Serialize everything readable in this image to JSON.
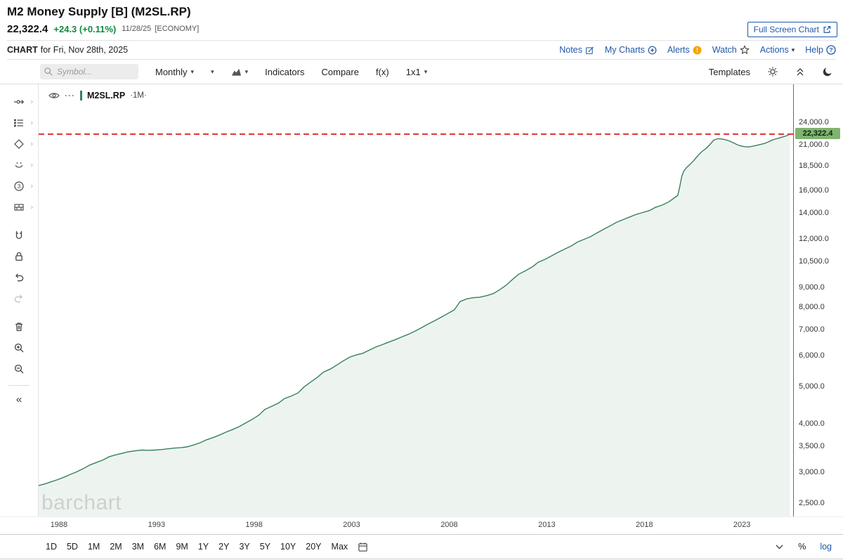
{
  "colors": {
    "link_blue": "#2158a8",
    "change_green": "#0f8a3d",
    "label_green_bg": "#80b36f",
    "alert_orange": "#f7a400",
    "log_blue": "#2158a8"
  },
  "icons": {
    "caret-down": "▾",
    "submenu-arrow": "›",
    "collapse-left": "«"
  },
  "header": {
    "title": "M2 Money Supply [B] (M2SL.RP)",
    "last_price": "22,322.4",
    "change": "+24.3 (+0.11%)",
    "quote_date": "11/28/25",
    "category": "[ECONOMY]",
    "fullscreen_button": "Full Screen Chart",
    "chart_for_bold": "CHART",
    "chart_for_text": "for Fri, Nov 28th, 2025",
    "links": [
      {
        "label": "Notes",
        "icon": "notes-icon"
      },
      {
        "label": "My Charts",
        "icon": "circle-plus-icon"
      },
      {
        "label": "Alerts",
        "icon": "alert-badge-icon"
      },
      {
        "label": "Watch",
        "icon": "star-icon"
      },
      {
        "label": "Actions",
        "icon": "caret-down-icon"
      },
      {
        "label": "Help",
        "icon": "help-icon"
      }
    ]
  },
  "toolbar": {
    "symbol_placeholder": "Symbol...",
    "frequency_label": "Monthly",
    "indicators_label": "Indicators",
    "compare_label": "Compare",
    "fx_label": "f(x)",
    "grid_label": "1x1",
    "templates_label": "Templates"
  },
  "legend": {
    "symbol": "M2SL.RP",
    "frequency": "·1M·",
    "dots": "···"
  },
  "watermark": "barchart",
  "drawing_tools": [
    "trendline-tool",
    "annotation-tool",
    "shapes-tool",
    "emoji-tool",
    "fibonacci-tool",
    "pattern-tool",
    "magnet-tool",
    "lock-tool",
    "undo",
    "redo",
    "delete-tool",
    "zoom-in",
    "zoom-out",
    "collapse-panel"
  ],
  "periods": [
    "1D",
    "5D",
    "1M",
    "2M",
    "3M",
    "6M",
    "9M",
    "1Y",
    "2Y",
    "3Y",
    "5Y",
    "10Y",
    "20Y",
    "Max"
  ],
  "bottom_right": {
    "percent_label": "%",
    "log_label": "log"
  },
  "chart_data": {
    "type": "area",
    "title": "M2 Money Supply [B] (M2SL.RP)",
    "symbol": "M2SL.RP",
    "frequency": "1M",
    "y_scale": "log",
    "x_range": [
      1987.4,
      2026.1
    ],
    "y_range": [
      2310,
      30000
    ],
    "x_ticks": [
      {
        "v": 1988,
        "label": "1988"
      },
      {
        "v": 1993,
        "label": "1993"
      },
      {
        "v": 1998,
        "label": "1998"
      },
      {
        "v": 2003,
        "label": "2003"
      },
      {
        "v": 2008,
        "label": "2008"
      },
      {
        "v": 2013,
        "label": "2013"
      },
      {
        "v": 2018,
        "label": "2018"
      },
      {
        "v": 2023,
        "label": "2023"
      }
    ],
    "y_ticks": [
      {
        "v": 24000,
        "label": "24,000.0"
      },
      {
        "v": 21000,
        "label": "21,000.0"
      },
      {
        "v": 18500,
        "label": "18,500.0"
      },
      {
        "v": 16000,
        "label": "16,000.0"
      },
      {
        "v": 14000,
        "label": "14,000.0"
      },
      {
        "v": 12000,
        "label": "12,000.0"
      },
      {
        "v": 10500,
        "label": "10,500.0"
      },
      {
        "v": 9000,
        "label": "9,000.0"
      },
      {
        "v": 8000,
        "label": "8,000.0"
      },
      {
        "v": 7000,
        "label": "7,000.0"
      },
      {
        "v": 6000,
        "label": "6,000.0"
      },
      {
        "v": 5000,
        "label": "5,000.0"
      },
      {
        "v": 4000,
        "label": "4,000.0"
      },
      {
        "v": 3500,
        "label": "3,500.0"
      },
      {
        "v": 3000,
        "label": "3,000.0"
      },
      {
        "v": 2500,
        "label": "2,500.0"
      }
    ],
    "last_value": 22322.4,
    "last_value_label": "22,322.4",
    "line_color": "#38805a",
    "fill_color": "rgba(56,128,90,0.09)",
    "dashed_line_color": "#e03030",
    "crosshair_color": "#c2368f",
    "points": [
      [
        1987.4,
        2775
      ],
      [
        1987.7,
        2800
      ],
      [
        1988.0,
        2832
      ],
      [
        1988.35,
        2870
      ],
      [
        1988.7,
        2915
      ],
      [
        1989.0,
        2960
      ],
      [
        1989.35,
        3010
      ],
      [
        1989.7,
        3070
      ],
      [
        1990.0,
        3130
      ],
      [
        1990.35,
        3180
      ],
      [
        1990.7,
        3230
      ],
      [
        1991.0,
        3290
      ],
      [
        1991.35,
        3330
      ],
      [
        1991.7,
        3360
      ],
      [
        1992.0,
        3390
      ],
      [
        1992.35,
        3410
      ],
      [
        1992.7,
        3425
      ],
      [
        1993.0,
        3420
      ],
      [
        1993.35,
        3425
      ],
      [
        1993.7,
        3435
      ],
      [
        1994.0,
        3450
      ],
      [
        1994.35,
        3465
      ],
      [
        1994.7,
        3475
      ],
      [
        1995.0,
        3490
      ],
      [
        1995.35,
        3530
      ],
      [
        1995.7,
        3580
      ],
      [
        1996.0,
        3640
      ],
      [
        1996.35,
        3690
      ],
      [
        1996.7,
        3750
      ],
      [
        1997.0,
        3810
      ],
      [
        1997.35,
        3870
      ],
      [
        1997.7,
        3940
      ],
      [
        1998.0,
        4020
      ],
      [
        1998.35,
        4110
      ],
      [
        1998.7,
        4220
      ],
      [
        1999.0,
        4360
      ],
      [
        1999.35,
        4440
      ],
      [
        1999.7,
        4530
      ],
      [
        2000.0,
        4650
      ],
      [
        2000.35,
        4720
      ],
      [
        2000.7,
        4810
      ],
      [
        2001.0,
        4980
      ],
      [
        2001.35,
        5130
      ],
      [
        2001.7,
        5280
      ],
      [
        2002.0,
        5440
      ],
      [
        2002.35,
        5540
      ],
      [
        2002.7,
        5680
      ],
      [
        2003.0,
        5810
      ],
      [
        2003.35,
        5950
      ],
      [
        2003.7,
        6030
      ],
      [
        2004.0,
        6080
      ],
      [
        2004.35,
        6200
      ],
      [
        2004.7,
        6320
      ],
      [
        2005.0,
        6400
      ],
      [
        2005.35,
        6500
      ],
      [
        2005.7,
        6600
      ],
      [
        2006.0,
        6700
      ],
      [
        2006.35,
        6810
      ],
      [
        2006.7,
        6940
      ],
      [
        2007.0,
        7070
      ],
      [
        2007.35,
        7230
      ],
      [
        2007.7,
        7380
      ],
      [
        2008.0,
        7520
      ],
      [
        2008.35,
        7690
      ],
      [
        2008.7,
        7870
      ],
      [
        2009.0,
        8270
      ],
      [
        2009.35,
        8400
      ],
      [
        2009.7,
        8460
      ],
      [
        2010.0,
        8480
      ],
      [
        2010.35,
        8560
      ],
      [
        2010.7,
        8670
      ],
      [
        2011.0,
        8850
      ],
      [
        2011.35,
        9100
      ],
      [
        2011.7,
        9440
      ],
      [
        2012.0,
        9720
      ],
      [
        2012.35,
        9930
      ],
      [
        2012.7,
        10150
      ],
      [
        2013.0,
        10440
      ],
      [
        2013.35,
        10620
      ],
      [
        2013.7,
        10850
      ],
      [
        2014.0,
        11060
      ],
      [
        2014.35,
        11280
      ],
      [
        2014.7,
        11500
      ],
      [
        2015.0,
        11760
      ],
      [
        2015.35,
        11960
      ],
      [
        2015.7,
        12160
      ],
      [
        2016.0,
        12410
      ],
      [
        2016.35,
        12690
      ],
      [
        2016.7,
        12960
      ],
      [
        2017.0,
        13220
      ],
      [
        2017.35,
        13440
      ],
      [
        2017.7,
        13660
      ],
      [
        2018.0,
        13850
      ],
      [
        2018.35,
        14020
      ],
      [
        2018.7,
        14180
      ],
      [
        2019.0,
        14450
      ],
      [
        2019.35,
        14650
      ],
      [
        2019.7,
        14940
      ],
      [
        2020.0,
        15330
      ],
      [
        2020.15,
        15500
      ],
      [
        2020.25,
        16300
      ],
      [
        2020.35,
        17300
      ],
      [
        2020.45,
        17900
      ],
      [
        2020.6,
        18300
      ],
      [
        2020.8,
        18700
      ],
      [
        2021.0,
        19150
      ],
      [
        2021.2,
        19700
      ],
      [
        2021.4,
        20150
      ],
      [
        2021.6,
        20500
      ],
      [
        2021.8,
        21000
      ],
      [
        2022.0,
        21550
      ],
      [
        2022.2,
        21730
      ],
      [
        2022.4,
        21700
      ],
      [
        2022.6,
        21590
      ],
      [
        2022.8,
        21440
      ],
      [
        2023.0,
        21210
      ],
      [
        2023.2,
        20960
      ],
      [
        2023.4,
        20800
      ],
      [
        2023.6,
        20720
      ],
      [
        2023.8,
        20690
      ],
      [
        2024.0,
        20780
      ],
      [
        2024.2,
        20890
      ],
      [
        2024.4,
        21000
      ],
      [
        2024.6,
        21130
      ],
      [
        2024.8,
        21320
      ],
      [
        2025.0,
        21560
      ],
      [
        2025.2,
        21720
      ],
      [
        2025.4,
        21860
      ],
      [
        2025.6,
        22010
      ],
      [
        2025.75,
        22130
      ],
      [
        2025.9,
        22322.4
      ]
    ]
  }
}
